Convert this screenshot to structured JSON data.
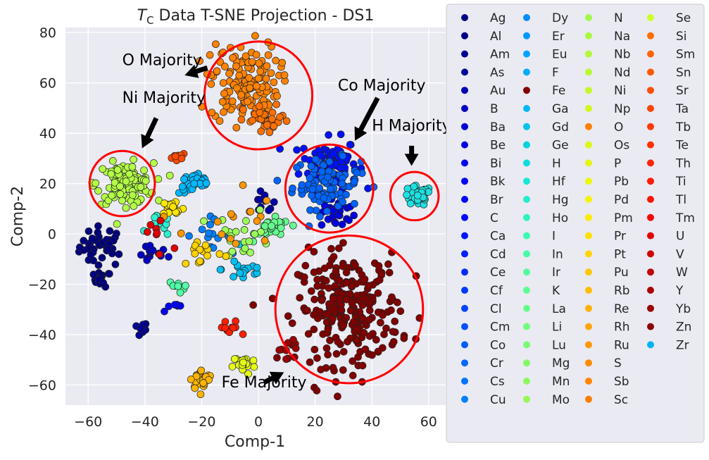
{
  "chart_data": {
    "type": "scatter",
    "title_prefix": "T",
    "title_subscript": "C",
    "title_rest": " Data T-SNE Projection - DS1",
    "xlabel": "Comp-1",
    "ylabel": "Comp-2",
    "xlim": [
      -68,
      66
    ],
    "ylim": [
      -68,
      82
    ],
    "xticks": [
      -60,
      -40,
      -20,
      0,
      20,
      40,
      60
    ],
    "xtick_labels": [
      "−60",
      "−40",
      "−20",
      "0",
      "20",
      "40",
      "60"
    ],
    "yticks": [
      80,
      60,
      40,
      20,
      0,
      -20,
      -40,
      -60
    ],
    "ytick_labels": [
      "80",
      "60",
      "40",
      "20",
      "0",
      "−20",
      "−40",
      "−60"
    ],
    "grid": true,
    "legend_placement": "right",
    "legend_columns": 4,
    "clusters": [
      {
        "name": "Ag",
        "color": "#00007f",
        "cx": -55,
        "cy": -5,
        "sx": 4,
        "sy": 4,
        "n": 40
      },
      {
        "name": "Al",
        "color": "#00007f",
        "cx": -55,
        "cy": -18,
        "sx": 1.5,
        "sy": 1.5,
        "n": 15
      },
      {
        "name": "Am",
        "color": "#000096",
        "cx": -42,
        "cy": -38,
        "sx": 1.5,
        "sy": 1.5,
        "n": 10
      },
      {
        "name": "As",
        "color": "#0000a8",
        "cx": 2,
        "cy": 12,
        "sx": 2,
        "sy": 2,
        "n": 10
      },
      {
        "name": "Au",
        "color": "#0000c4",
        "cx": -38,
        "cy": -8,
        "sx": 3,
        "sy": 2,
        "n": 15
      },
      {
        "name": "Ba",
        "color": "#0000e0",
        "cx": 28,
        "cy": 8,
        "sx": 3,
        "sy": 3,
        "n": 25
      },
      {
        "name": "Be",
        "color": "#0000f2",
        "cx": -30,
        "cy": -28,
        "sx": 2,
        "sy": 2,
        "n": 6
      },
      {
        "name": "Ca",
        "color": "#0010ff",
        "cx": 25,
        "cy": 28,
        "sx": 5,
        "sy": 5,
        "n": 90
      },
      {
        "name": "Co",
        "color": "#0064ff",
        "cx": 24,
        "cy": 20,
        "sx": 6,
        "sy": 5,
        "n": 90
      },
      {
        "name": "Cs",
        "color": "#0080ff",
        "cx": -18,
        "cy": 0,
        "sx": 4,
        "sy": 3,
        "n": 15
      },
      {
        "name": "Ga",
        "color": "#00b8ff",
        "cx": -22,
        "cy": 20,
        "sx": 3,
        "sy": 2,
        "n": 35
      },
      {
        "name": "Zr",
        "color": "#00c0f0",
        "cx": -5,
        "cy": -14,
        "sx": 4,
        "sy": 3,
        "n": 18
      },
      {
        "name": "H",
        "color": "#1ee0e0",
        "cx": 56,
        "cy": 15,
        "sx": 2.5,
        "sy": 2,
        "n": 40
      },
      {
        "name": "Hf",
        "color": "#2ef0d0",
        "cx": -35,
        "cy": 3,
        "sx": 2,
        "sy": 2,
        "n": 10
      },
      {
        "name": "In",
        "color": "#50ffa6",
        "cx": -28,
        "cy": -20,
        "sx": 2,
        "sy": 2,
        "n": 8
      },
      {
        "name": "Mg",
        "color": "#66ff90",
        "cx": 5,
        "cy": 2,
        "sx": 3,
        "sy": 2,
        "n": 30
      },
      {
        "name": "Nb",
        "color": "#9cff5a",
        "cx": -5,
        "cy": 0,
        "sx": 5,
        "sy": 5,
        "n": 20
      },
      {
        "name": "Ni",
        "color": "#b3ff46",
        "cx": -47,
        "cy": 20,
        "sx": 5,
        "sy": 4,
        "n": 120
      },
      {
        "name": "Pd",
        "color": "#e6ff14",
        "cx": -5,
        "cy": -52,
        "sx": 2,
        "sy": 2,
        "n": 20
      },
      {
        "name": "Pm",
        "color": "#ffe600",
        "cx": -30,
        "cy": 10,
        "sx": 2,
        "sy": 2,
        "n": 20
      },
      {
        "name": "Pr",
        "color": "#ffd200",
        "cx": -20,
        "cy": -7,
        "sx": 4,
        "sy": 3,
        "n": 15
      },
      {
        "name": "Rb",
        "color": "#ffb400",
        "cx": -20,
        "cy": -58,
        "sx": 2,
        "sy": 2,
        "n": 30
      },
      {
        "name": "S",
        "color": "#ff9600",
        "cx": -10,
        "cy": 5,
        "sx": 8,
        "sy": 8,
        "n": 15
      },
      {
        "name": "O",
        "color": "#ff8200",
        "cx": -5,
        "cy": 60,
        "sx": 6,
        "sy": 8,
        "n": 150
      },
      {
        "name": "Sm",
        "color": "#ff7000",
        "cx": 3,
        "cy": 45,
        "sx": 4,
        "sy": 3,
        "n": 30
      },
      {
        "name": "Tb",
        "color": "#ff4a00",
        "cx": -28,
        "cy": 30,
        "sx": 2,
        "sy": 1,
        "n": 10
      },
      {
        "name": "Tl",
        "color": "#ff1e00",
        "cx": -10,
        "cy": -38,
        "sx": 2,
        "sy": 2,
        "n": 10
      },
      {
        "name": "U",
        "color": "#e40000",
        "cx": -35,
        "cy": 0,
        "sx": 5,
        "sy": 5,
        "n": 8
      },
      {
        "name": "Fe",
        "color": "#800000",
        "cx": 32,
        "cy": -30,
        "sx": 9,
        "sy": 11,
        "n": 260
      },
      {
        "name": "Y",
        "color": "#990000",
        "cx": 10,
        "cy": -45,
        "sx": 2,
        "sy": 2,
        "n": 10
      }
    ],
    "circles": [
      {
        "label": "Ni",
        "cx": -48,
        "cy": 20,
        "r": 11.5,
        "color": "#ff0000"
      },
      {
        "label": "O",
        "cx": 0,
        "cy": 55,
        "r": 19,
        "color": "#ff0000"
      },
      {
        "label": "Co",
        "cx": 25,
        "cy": 18,
        "r": 15.5,
        "color": "#ff0000"
      },
      {
        "label": "H",
        "cx": 55,
        "cy": 15,
        "r": 8.5,
        "color": "#ff0000"
      },
      {
        "label": "Fe",
        "cx": 32,
        "cy": -30,
        "r": 26,
        "color": "#ff0000"
      }
    ],
    "annotations": [
      {
        "text": "O Majority",
        "tx": -48,
        "ty": 67,
        "ax": -26,
        "ay": 63,
        "bx": -18,
        "by": 66
      },
      {
        "text": "Ni Majority",
        "tx": -48,
        "ty": 52,
        "ax": -41,
        "ay": 34,
        "bx": -36,
        "by": 46
      },
      {
        "text": "Co Majority",
        "tx": 28,
        "ty": 57,
        "ax": 34,
        "ay": 37,
        "bx": 42,
        "by": 54
      },
      {
        "text": "H Majority",
        "tx": 40,
        "ty": 41,
        "ax": 54,
        "ay": 27,
        "bx": 54,
        "by": 35
      },
      {
        "text": "Fe Majority",
        "tx": -13,
        "ty": -61,
        "ax": 9,
        "ay": -55,
        "bx": 2,
        "by": -59
      }
    ],
    "legend": [
      {
        "name": "Ag",
        "color": "#00007f"
      },
      {
        "name": "Al",
        "color": "#000087"
      },
      {
        "name": "Am",
        "color": "#000090"
      },
      {
        "name": "As",
        "color": "#000099"
      },
      {
        "name": "Au",
        "color": "#0000b2"
      },
      {
        "name": "B",
        "color": "#0000c4"
      },
      {
        "name": "Ba",
        "color": "#0000d6"
      },
      {
        "name": "Be",
        "color": "#0000e3"
      },
      {
        "name": "Bi",
        "color": "#0000f1"
      },
      {
        "name": "Bk",
        "color": "#0000fa"
      },
      {
        "name": "Br",
        "color": "#0000ff"
      },
      {
        "name": "C",
        "color": "#0008ff"
      },
      {
        "name": "Ca",
        "color": "#0014ff"
      },
      {
        "name": "Cd",
        "color": "#0020ff"
      },
      {
        "name": "Ce",
        "color": "#002cff"
      },
      {
        "name": "Cf",
        "color": "#0038ff"
      },
      {
        "name": "Cl",
        "color": "#0044ff"
      },
      {
        "name": "Cm",
        "color": "#0050ff"
      },
      {
        "name": "Co",
        "color": "#005cff"
      },
      {
        "name": "Cr",
        "color": "#0068ff"
      },
      {
        "name": "Cs",
        "color": "#0074ff"
      },
      {
        "name": "Cu",
        "color": "#0080ff"
      },
      {
        "name": "Dy",
        "color": "#008cff"
      },
      {
        "name": "Er",
        "color": "#0098ff"
      },
      {
        "name": "Eu",
        "color": "#00a4ff"
      },
      {
        "name": "F",
        "color": "#00acff"
      },
      {
        "name": "Fe",
        "color": "#800000"
      },
      {
        "name": "Ga",
        "color": "#00b8f8"
      },
      {
        "name": "Gd",
        "color": "#00c4ec"
      },
      {
        "name": "Ge",
        "color": "#00d0e0"
      },
      {
        "name": "H",
        "color": "#0cdcde"
      },
      {
        "name": "Hf",
        "color": "#1ae6d6"
      },
      {
        "name": "Hg",
        "color": "#26ecca"
      },
      {
        "name": "Ho",
        "color": "#30f4be"
      },
      {
        "name": "I",
        "color": "#3cf8b2"
      },
      {
        "name": "In",
        "color": "#48faa6"
      },
      {
        "name": "Ir",
        "color": "#52fc9c"
      },
      {
        "name": "K",
        "color": "#5cfc92"
      },
      {
        "name": "La",
        "color": "#66fc88"
      },
      {
        "name": "Li",
        "color": "#70fc7e"
      },
      {
        "name": "Lu",
        "color": "#7afa74"
      },
      {
        "name": "Mg",
        "color": "#84f86a"
      },
      {
        "name": "Mn",
        "color": "#8ef860"
      },
      {
        "name": "Mo",
        "color": "#96f858"
      },
      {
        "name": "N",
        "color": "#a0f84e"
      },
      {
        "name": "Na",
        "color": "#aaf844"
      },
      {
        "name": "Nb",
        "color": "#b2f83c"
      },
      {
        "name": "Nd",
        "color": "#bcf832"
      },
      {
        "name": "Ni",
        "color": "#c6f828"
      },
      {
        "name": "Np",
        "color": "#d0f81e"
      },
      {
        "name": "O",
        "color": "#ff8000"
      },
      {
        "name": "Os",
        "color": "#daf814"
      },
      {
        "name": "P",
        "color": "#e2f80c"
      },
      {
        "name": "Pb",
        "color": "#ecf804"
      },
      {
        "name": "Pd",
        "color": "#f4f400"
      },
      {
        "name": "Pm",
        "color": "#fcec00"
      },
      {
        "name": "Pr",
        "color": "#ffe000"
      },
      {
        "name": "Pt",
        "color": "#ffd400"
      },
      {
        "name": "Pu",
        "color": "#ffc800"
      },
      {
        "name": "Rb",
        "color": "#ffbc00"
      },
      {
        "name": "Re",
        "color": "#ffb000"
      },
      {
        "name": "Rh",
        "color": "#ffa400"
      },
      {
        "name": "Ru",
        "color": "#ff9800"
      },
      {
        "name": "S",
        "color": "#ff8c00"
      },
      {
        "name": "Sb",
        "color": "#ff8400"
      },
      {
        "name": "Sc",
        "color": "#ff7c00"
      },
      {
        "name": "Se",
        "color": "#ccff28"
      },
      {
        "name": "Si",
        "color": "#ff6c00"
      },
      {
        "name": "Sm",
        "color": "#ff6200"
      },
      {
        "name": "Sn",
        "color": "#ff5800"
      },
      {
        "name": "Sr",
        "color": "#ff4e00"
      },
      {
        "name": "Ta",
        "color": "#ff4400"
      },
      {
        "name": "Tb",
        "color": "#ff3a00"
      },
      {
        "name": "Te",
        "color": "#ff3000"
      },
      {
        "name": "Th",
        "color": "#ff2600"
      },
      {
        "name": "Ti",
        "color": "#ff1c00"
      },
      {
        "name": "Tl",
        "color": "#ff1200"
      },
      {
        "name": "Tm",
        "color": "#f40800"
      },
      {
        "name": "U",
        "color": "#e20000"
      },
      {
        "name": "V",
        "color": "#d00000"
      },
      {
        "name": "W",
        "color": "#be0000"
      },
      {
        "name": "Y",
        "color": "#ac0000"
      },
      {
        "name": "Yb",
        "color": "#9a0000"
      },
      {
        "name": "Zn",
        "color": "#880000"
      },
      {
        "name": "Zr",
        "color": "#00b4f0"
      }
    ]
  }
}
